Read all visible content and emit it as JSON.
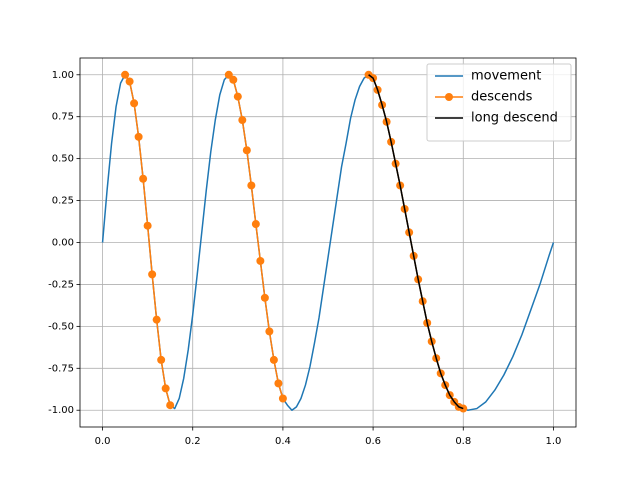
{
  "chart_data": {
    "type": "line",
    "xlim": [
      -0.05,
      1.05
    ],
    "ylim": [
      -1.1,
      1.1
    ],
    "xticks": [
      {
        "value": 0,
        "label": "0.0"
      },
      0.2,
      0.4,
      0.6,
      0.8,
      {
        "value": 1,
        "label": "1.0"
      }
    ],
    "yticks": [
      {
        "value": -1,
        "label": "-1.00"
      },
      -0.75,
      {
        "value": -0.5,
        "label": "-0.50"
      },
      -0.25,
      {
        "value": 0,
        "label": "0.00"
      },
      0.25,
      {
        "value": 0.5,
        "label": "0.50"
      },
      0.75,
      {
        "value": 1,
        "label": "1.00"
      }
    ],
    "grid": true,
    "legend": "upper right",
    "series": [
      {
        "name": "movement",
        "color": "#1f77b4",
        "marker": false,
        "x": [
          0,
          0.01,
          0.02,
          0.03,
          0.04,
          0.05,
          0.06,
          0.07,
          0.08,
          0.09,
          0.1,
          0.11,
          0.12,
          0.13,
          0.14,
          0.15,
          0.16,
          0.17,
          0.18,
          0.19,
          0.2,
          0.21,
          0.22,
          0.23,
          0.24,
          0.25,
          0.26,
          0.27,
          0.28,
          0.29,
          0.3,
          0.31,
          0.32,
          0.33,
          0.34,
          0.35,
          0.36,
          0.37,
          0.38,
          0.39,
          0.4,
          0.41,
          0.42,
          0.43,
          0.44,
          0.45,
          0.46,
          0.47,
          0.48,
          0.49,
          0.5,
          0.51,
          0.52,
          0.53,
          0.54,
          0.55,
          0.56,
          0.57,
          0.58,
          0.59,
          0.6,
          0.61,
          0.62,
          0.63,
          0.64,
          0.65,
          0.66,
          0.67,
          0.68,
          0.69,
          0.7,
          0.71,
          0.72,
          0.73,
          0.74,
          0.75,
          0.76,
          0.77,
          0.78,
          0.79,
          0.8,
          0.81,
          0.83,
          0.85,
          0.87,
          0.89,
          0.91,
          0.93,
          0.95,
          0.97,
          0.99,
          1
        ],
        "values": [
          0,
          0.31,
          0.59,
          0.81,
          0.95,
          1,
          0.96,
          0.83,
          0.63,
          0.38,
          0.1,
          -0.19,
          -0.46,
          -0.7,
          -0.87,
          -0.97,
          -0.99,
          -0.93,
          -0.81,
          -0.64,
          -0.43,
          -0.19,
          0.06,
          0.31,
          0.54,
          0.73,
          0.88,
          0.97,
          1,
          0.97,
          0.87,
          0.73,
          0.55,
          0.34,
          0.11,
          -0.11,
          -0.33,
          -0.53,
          -0.7,
          -0.84,
          -0.93,
          -0.97,
          -1,
          -0.98,
          -0.93,
          -0.85,
          -0.74,
          -0.6,
          -0.45,
          -0.27,
          -0.09,
          0.09,
          0.27,
          0.45,
          0.59,
          0.74,
          0.85,
          0.93,
          0.98,
          1,
          0.98,
          0.91,
          0.82,
          0.72,
          0.6,
          0.47,
          0.34,
          0.2,
          0.06,
          -0.08,
          -0.22,
          -0.35,
          -0.48,
          -0.59,
          -0.69,
          -0.78,
          -0.85,
          -0.91,
          -0.95,
          -0.98,
          -0.99,
          -1,
          -0.99,
          -0.95,
          -0.88,
          -0.79,
          -0.68,
          -0.55,
          -0.4,
          -0.25,
          -0.08,
          0
        ]
      },
      {
        "name": "descends",
        "color": "#ff7f0e",
        "marker": true,
        "x": [
          0.05,
          0.06,
          0.07,
          0.08,
          0.09,
          0.1,
          0.11,
          0.12,
          0.13,
          0.14,
          0.15,
          null,
          0.28,
          0.29,
          0.3,
          0.31,
          0.32,
          0.33,
          0.34,
          0.35,
          0.36,
          0.37,
          0.38,
          0.39,
          0.4,
          null,
          0.59,
          0.6,
          0.61,
          0.62,
          0.63,
          0.64,
          0.65,
          0.66,
          0.67,
          0.68,
          0.69,
          0.7,
          0.71,
          0.72,
          0.73,
          0.74,
          0.75,
          0.76,
          0.77,
          0.78,
          0.79,
          0.8
        ],
        "values": [
          1,
          0.96,
          0.83,
          0.63,
          0.38,
          0.1,
          -0.19,
          -0.46,
          -0.7,
          -0.87,
          -0.97,
          null,
          1,
          0.97,
          0.87,
          0.73,
          0.55,
          0.34,
          0.11,
          -0.11,
          -0.33,
          -0.53,
          -0.7,
          -0.84,
          -0.93,
          null,
          1,
          0.98,
          0.91,
          0.82,
          0.72,
          0.6,
          0.47,
          0.34,
          0.2,
          0.06,
          -0.08,
          -0.22,
          -0.35,
          -0.48,
          -0.59,
          -0.69,
          -0.78,
          -0.85,
          -0.91,
          -0.95,
          -0.98,
          -0.99
        ]
      },
      {
        "name": "long descend",
        "color": "#000000",
        "marker": false,
        "x": [
          0.59,
          0.6,
          0.61,
          0.62,
          0.63,
          0.64,
          0.65,
          0.66,
          0.67,
          0.68,
          0.69,
          0.7,
          0.71,
          0.72,
          0.73,
          0.74,
          0.75,
          0.76,
          0.77,
          0.78,
          0.79,
          0.8
        ],
        "values": [
          1,
          0.98,
          0.91,
          0.82,
          0.72,
          0.6,
          0.47,
          0.34,
          0.2,
          0.06,
          -0.08,
          -0.22,
          -0.35,
          -0.48,
          -0.59,
          -0.69,
          -0.78,
          -0.85,
          -0.91,
          -0.95,
          -0.98,
          -0.99
        ]
      }
    ]
  }
}
